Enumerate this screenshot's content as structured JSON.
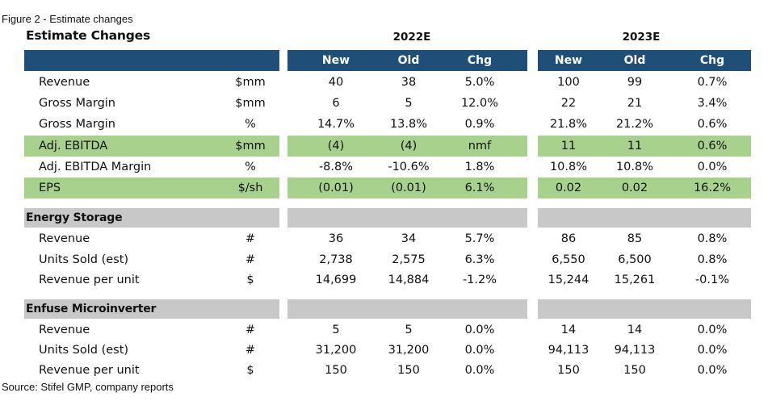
{
  "figure_label": "Figure 2 - Estimate changes",
  "title": "Estimate Changes",
  "years": [
    "2022E",
    "2023E"
  ],
  "col_headers": [
    "New",
    "Old",
    "Chg",
    "New",
    "Old",
    "Chg"
  ],
  "highlight_colors": {
    "header": "#1f4e79",
    "green": "#a9d18e",
    "grey": "#c8c8c8"
  },
  "rows": [
    {
      "label": "Revenue",
      "unit": "$mm",
      "values": [
        "40",
        "38",
        "5.0%",
        "100",
        "99",
        "0.7%"
      ]
    },
    {
      "label": "Gross Margin",
      "unit": "$mm",
      "values": [
        "6",
        "5",
        "12.0%",
        "22",
        "21",
        "3.4%"
      ]
    },
    {
      "label": "Gross Margin",
      "unit": "%",
      "values": [
        "14.7%",
        "13.8%",
        "0.9%",
        "21.8%",
        "21.2%",
        "0.6%"
      ]
    },
    {
      "label": "Adj. EBITDA",
      "unit": "$mm",
      "values": [
        "(4)",
        "(4)",
        "nmf",
        "11",
        "11",
        "0.6%"
      ]
    },
    {
      "label": "Adj. EBITDA Margin",
      "unit": "%",
      "values": [
        "-8.8%",
        "-10.6%",
        "1.8%",
        "10.8%",
        "10.8%",
        "0.0%"
      ]
    },
    {
      "label": "EPS",
      "unit": "$/sh",
      "values": [
        "(0.01)",
        "(0.01)",
        "6.1%",
        "0.02",
        "0.02",
        "16.2%"
      ]
    }
  ],
  "sections": [
    {
      "title": "Energy Storage",
      "rows": [
        {
          "label": "Revenue",
          "unit": "#",
          "values": [
            "36",
            "34",
            "5.7%",
            "86",
            "85",
            "0.8%"
          ]
        },
        {
          "label": "Units Sold (est)",
          "unit": "#",
          "values": [
            "2,738",
            "2,575",
            "6.3%",
            "6,550",
            "6,500",
            "0.8%"
          ]
        },
        {
          "label": "Revenue per unit",
          "unit": "$",
          "values": [
            "14,699",
            "14,884",
            "-1.2%",
            "15,244",
            "15,261",
            "-0.1%"
          ]
        }
      ]
    },
    {
      "title": "Enfuse Microinverter",
      "rows": [
        {
          "label": "Revenue",
          "unit": "#",
          "values": [
            "5",
            "5",
            "0.0%",
            "14",
            "14",
            "0.0%"
          ]
        },
        {
          "label": "Units Sold (est)",
          "unit": "#",
          "values": [
            "31,200",
            "31,200",
            "0.0%",
            "94,113",
            "94,113",
            "0.0%"
          ]
        },
        {
          "label": "Revenue per unit",
          "unit": "$",
          "values": [
            "150",
            "150",
            "0.0%",
            "150",
            "150",
            "0.0%"
          ]
        }
      ]
    }
  ],
  "source": "Source: Stifel GMP, company reports"
}
